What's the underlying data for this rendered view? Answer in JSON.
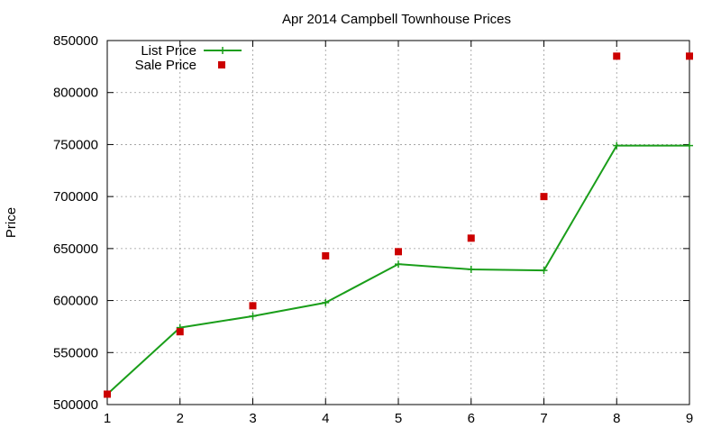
{
  "chart_data": {
    "type": "line",
    "title": "Apr 2014 Campbell Townhouse Prices",
    "xlabel": "",
    "ylabel": "Price",
    "x": [
      1,
      2,
      3,
      4,
      5,
      6,
      7,
      8,
      9
    ],
    "xlim": [
      1,
      9
    ],
    "ylim": [
      500000,
      850000
    ],
    "yticks": [
      500000,
      550000,
      600000,
      650000,
      700000,
      750000,
      800000,
      850000
    ],
    "grid": true,
    "legend_position": "top-left",
    "series": [
      {
        "name": "List Price",
        "style": "line+cross",
        "color": "#1a9e1a",
        "values": [
          510000,
          574000,
          585000,
          598000,
          635000,
          630000,
          629000,
          749000,
          749000
        ]
      },
      {
        "name": "Sale Price",
        "style": "square-points",
        "color": "#cc0000",
        "values": [
          510000,
          570000,
          595000,
          643000,
          647000,
          660000,
          700000,
          835000,
          835000
        ]
      }
    ]
  }
}
